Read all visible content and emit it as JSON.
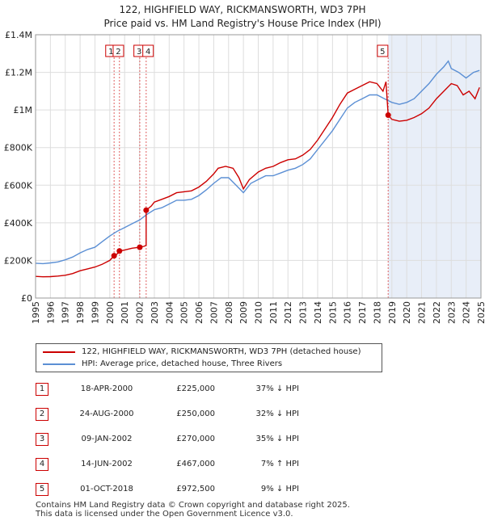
{
  "title": {
    "line1": "122, HIGHFIELD WAY, RICKMANSWORTH, WD3 7PH",
    "line2": "Price paid vs. HM Land Registry's House Price Index (HPI)"
  },
  "colors": {
    "property": "#cc0000",
    "hpi": "#5b8fd4",
    "shade": "#e8eef8",
    "grid": "#dddddd",
    "sale_line": "#e06060"
  },
  "chart_data": {
    "type": "line",
    "xlim": [
      1995,
      2025
    ],
    "ylim": [
      0,
      1400000
    ],
    "y_ticks": [
      0,
      200000,
      400000,
      600000,
      800000,
      1000000,
      1200000,
      1400000
    ],
    "y_tick_labels": [
      "£0",
      "£200K",
      "£400K",
      "£600K",
      "£800K",
      "£1M",
      "£1.2M",
      "£1.4M"
    ],
    "x_ticks": [
      1995,
      1996,
      1997,
      1998,
      1999,
      2000,
      2001,
      2002,
      2003,
      2004,
      2005,
      2006,
      2007,
      2008,
      2009,
      2010,
      2011,
      2012,
      2013,
      2014,
      2015,
      2016,
      2017,
      2018,
      2019,
      2020,
      2021,
      2022,
      2023,
      2024,
      2025
    ],
    "x_tick_labels": [
      "1995",
      "1996",
      "1997",
      "1998",
      "1999",
      "2000",
      "2001",
      "2002",
      "2003",
      "2004",
      "2005",
      "2006",
      "2007",
      "2008",
      "2009",
      "2010",
      "2011",
      "2012",
      "2013",
      "2014",
      "2015",
      "2016",
      "2017",
      "2018",
      "2019",
      "2020",
      "2021",
      "2022",
      "2023",
      "2024",
      "2025"
    ],
    "shaded_from": 2018.75,
    "grid": true,
    "series": [
      {
        "name": "122, HIGHFIELD WAY, RICKMANSWORTH, WD3 7PH (detached house)",
        "color": "#cc0000",
        "points": [
          [
            1995.0,
            115000
          ],
          [
            1995.5,
            113000
          ],
          [
            1996.0,
            114000
          ],
          [
            1996.5,
            117000
          ],
          [
            1997.0,
            121000
          ],
          [
            1997.5,
            130000
          ],
          [
            1998.0,
            145000
          ],
          [
            1998.5,
            155000
          ],
          [
            1999.0,
            165000
          ],
          [
            1999.5,
            180000
          ],
          [
            2000.0,
            200000
          ],
          [
            2000.29,
            225000
          ],
          [
            2000.5,
            235000
          ],
          [
            2000.65,
            250000
          ],
          [
            2001.0,
            255000
          ],
          [
            2001.5,
            265000
          ],
          [
            2002.02,
            270000
          ],
          [
            2002.3,
            275000
          ],
          [
            2002.45,
            280000
          ],
          [
            2002.45,
            467000
          ],
          [
            2002.8,
            490000
          ],
          [
            2003.0,
            510000
          ],
          [
            2003.5,
            525000
          ],
          [
            2004.0,
            540000
          ],
          [
            2004.5,
            560000
          ],
          [
            2005.0,
            565000
          ],
          [
            2005.5,
            570000
          ],
          [
            2006.0,
            590000
          ],
          [
            2006.5,
            620000
          ],
          [
            2007.0,
            660000
          ],
          [
            2007.3,
            690000
          ],
          [
            2007.8,
            700000
          ],
          [
            2008.3,
            690000
          ],
          [
            2008.7,
            640000
          ],
          [
            2009.0,
            580000
          ],
          [
            2009.4,
            630000
          ],
          [
            2010.0,
            670000
          ],
          [
            2010.5,
            690000
          ],
          [
            2011.0,
            700000
          ],
          [
            2011.5,
            720000
          ],
          [
            2012.0,
            735000
          ],
          [
            2012.5,
            740000
          ],
          [
            2013.0,
            760000
          ],
          [
            2013.5,
            790000
          ],
          [
            2014.0,
            840000
          ],
          [
            2014.5,
            900000
          ],
          [
            2015.0,
            960000
          ],
          [
            2015.5,
            1030000
          ],
          [
            2016.0,
            1090000
          ],
          [
            2016.5,
            1110000
          ],
          [
            2017.0,
            1130000
          ],
          [
            2017.5,
            1150000
          ],
          [
            2018.0,
            1140000
          ],
          [
            2018.4,
            1100000
          ],
          [
            2018.6,
            1150000
          ],
          [
            2018.75,
            972500
          ],
          [
            2019.0,
            950000
          ],
          [
            2019.5,
            940000
          ],
          [
            2020.0,
            945000
          ],
          [
            2020.5,
            960000
          ],
          [
            2021.0,
            980000
          ],
          [
            2021.5,
            1010000
          ],
          [
            2022.0,
            1060000
          ],
          [
            2022.5,
            1100000
          ],
          [
            2023.0,
            1140000
          ],
          [
            2023.4,
            1130000
          ],
          [
            2023.8,
            1080000
          ],
          [
            2024.2,
            1100000
          ],
          [
            2024.6,
            1060000
          ],
          [
            2024.9,
            1120000
          ]
        ]
      },
      {
        "name": "HPI: Average price, detached house, Three Rivers",
        "color": "#5b8fd4",
        "points": [
          [
            1995.0,
            185000
          ],
          [
            1995.5,
            183000
          ],
          [
            1996.0,
            187000
          ],
          [
            1996.5,
            192000
          ],
          [
            1997.0,
            203000
          ],
          [
            1997.5,
            218000
          ],
          [
            1998.0,
            240000
          ],
          [
            1998.5,
            258000
          ],
          [
            1999.0,
            270000
          ],
          [
            1999.5,
            300000
          ],
          [
            2000.0,
            330000
          ],
          [
            2000.5,
            355000
          ],
          [
            2001.0,
            375000
          ],
          [
            2001.5,
            395000
          ],
          [
            2002.0,
            415000
          ],
          [
            2002.5,
            445000
          ],
          [
            2003.0,
            470000
          ],
          [
            2003.5,
            480000
          ],
          [
            2004.0,
            500000
          ],
          [
            2004.5,
            520000
          ],
          [
            2005.0,
            520000
          ],
          [
            2005.5,
            525000
          ],
          [
            2006.0,
            545000
          ],
          [
            2006.5,
            575000
          ],
          [
            2007.0,
            610000
          ],
          [
            2007.5,
            640000
          ],
          [
            2008.0,
            640000
          ],
          [
            2008.5,
            600000
          ],
          [
            2009.0,
            560000
          ],
          [
            2009.5,
            610000
          ],
          [
            2010.0,
            630000
          ],
          [
            2010.5,
            650000
          ],
          [
            2011.0,
            650000
          ],
          [
            2011.5,
            665000
          ],
          [
            2012.0,
            680000
          ],
          [
            2012.5,
            690000
          ],
          [
            2013.0,
            710000
          ],
          [
            2013.5,
            740000
          ],
          [
            2014.0,
            790000
          ],
          [
            2014.5,
            840000
          ],
          [
            2015.0,
            890000
          ],
          [
            2015.5,
            950000
          ],
          [
            2016.0,
            1010000
          ],
          [
            2016.5,
            1040000
          ],
          [
            2017.0,
            1060000
          ],
          [
            2017.5,
            1080000
          ],
          [
            2018.0,
            1080000
          ],
          [
            2018.5,
            1060000
          ],
          [
            2019.0,
            1040000
          ],
          [
            2019.5,
            1030000
          ],
          [
            2020.0,
            1040000
          ],
          [
            2020.5,
            1060000
          ],
          [
            2021.0,
            1100000
          ],
          [
            2021.5,
            1140000
          ],
          [
            2022.0,
            1190000
          ],
          [
            2022.5,
            1230000
          ],
          [
            2022.8,
            1260000
          ],
          [
            2023.0,
            1220000
          ],
          [
            2023.5,
            1200000
          ],
          [
            2024.0,
            1170000
          ],
          [
            2024.5,
            1200000
          ],
          [
            2024.9,
            1210000
          ]
        ]
      }
    ],
    "sales": [
      {
        "label": "1",
        "x": 2000.29,
        "y": 225000
      },
      {
        "label": "2",
        "x": 2000.65,
        "y": 250000
      },
      {
        "label": "3",
        "x": 2002.02,
        "y": 270000
      },
      {
        "label": "4",
        "x": 2002.45,
        "y": 467000
      },
      {
        "label": "5",
        "x": 2018.75,
        "y": 972500
      }
    ]
  },
  "legend": {
    "property": "122, HIGHFIELD WAY, RICKMANSWORTH, WD3 7PH (detached house)",
    "hpi": "HPI: Average price, detached house, Three Rivers"
  },
  "sales_table": [
    {
      "num": "1",
      "date": "18-APR-2000",
      "price": "£225,000",
      "hpi": "37% ↓ HPI"
    },
    {
      "num": "2",
      "date": "24-AUG-2000",
      "price": "£250,000",
      "hpi": "32% ↓ HPI"
    },
    {
      "num": "3",
      "date": "09-JAN-2002",
      "price": "£270,000",
      "hpi": "35% ↓ HPI"
    },
    {
      "num": "4",
      "date": "14-JUN-2002",
      "price": "£467,000",
      "hpi": "7% ↑ HPI"
    },
    {
      "num": "5",
      "date": "01-OCT-2018",
      "price": "£972,500",
      "hpi": "9% ↓ HPI"
    }
  ],
  "footer": {
    "line1": "Contains HM Land Registry data © Crown copyright and database right 2025.",
    "line2": "This data is licensed under the Open Government Licence v3.0."
  }
}
